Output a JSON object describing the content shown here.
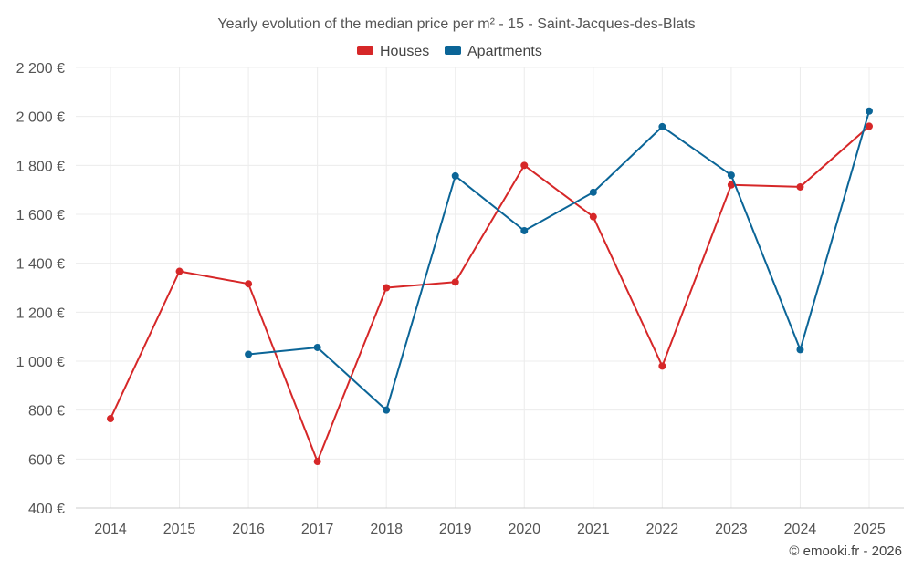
{
  "chart_data": {
    "type": "line",
    "title": "Yearly evolution of the median price per m² - 15 - Saint-Jacques-des-Blats",
    "x": [
      "2014",
      "2015",
      "2016",
      "2017",
      "2018",
      "2019",
      "2020",
      "2021",
      "2022",
      "2023",
      "2024",
      "2025"
    ],
    "ylim": [
      400,
      2200
    ],
    "yticks": [
      400,
      600,
      800,
      1000,
      1200,
      1400,
      1600,
      1800,
      2000,
      2200
    ],
    "ytick_labels": [
      "400 €",
      "600 €",
      "800 €",
      "1 000 €",
      "1 200 €",
      "1 400 €",
      "1 600 €",
      "1 800 €",
      "2 000 €",
      "2 200 €"
    ],
    "grid": true,
    "legend_position": "top-center",
    "series": [
      {
        "name": "Houses",
        "color": "#d62728",
        "values": [
          765,
          1367,
          1316,
          590,
          1300,
          1323,
          1800,
          1590,
          980,
          1720,
          1712,
          1960
        ]
      },
      {
        "name": "Apartments",
        "color": "#0b6597",
        "values": [
          null,
          null,
          1028,
          1056,
          800,
          1757,
          1533,
          1690,
          1958,
          1760,
          1047,
          2022
        ]
      }
    ]
  },
  "credit": "© emooki.fr - 2026"
}
